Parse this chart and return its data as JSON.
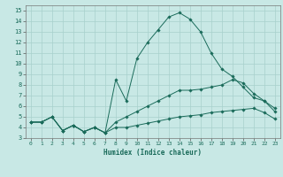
{
  "xlabel": "Humidex (Indice chaleur)",
  "bg_color": "#c8e8e5",
  "grid_color": "#a8d0cc",
  "line_color": "#1a6b5a",
  "xlim": [
    -0.5,
    23.5
  ],
  "ylim": [
    3,
    15.5
  ],
  "xticks": [
    0,
    1,
    2,
    3,
    4,
    5,
    6,
    7,
    8,
    9,
    10,
    11,
    12,
    13,
    14,
    15,
    16,
    17,
    18,
    19,
    20,
    21,
    22,
    23
  ],
  "yticks": [
    3,
    4,
    5,
    6,
    7,
    8,
    9,
    10,
    11,
    12,
    13,
    14,
    15
  ],
  "line1_x": [
    0,
    1,
    2,
    3,
    4,
    5,
    6,
    7,
    8,
    9,
    10,
    11,
    12,
    13,
    14,
    15,
    16,
    17,
    18,
    19,
    20,
    21,
    22,
    23
  ],
  "line1_y": [
    4.5,
    4.5,
    5.0,
    3.7,
    4.2,
    3.6,
    4.0,
    3.5,
    4.0,
    4.0,
    4.2,
    4.4,
    4.6,
    4.8,
    5.0,
    5.1,
    5.2,
    5.4,
    5.5,
    5.6,
    5.7,
    5.8,
    5.4,
    4.8
  ],
  "line2_x": [
    0,
    1,
    2,
    3,
    4,
    5,
    6,
    7,
    8,
    9,
    10,
    11,
    12,
    13,
    14,
    15,
    16,
    17,
    18,
    19,
    20,
    21,
    22,
    23
  ],
  "line2_y": [
    4.5,
    4.5,
    5.0,
    3.7,
    4.2,
    3.6,
    4.0,
    3.5,
    8.5,
    6.5,
    10.5,
    12.0,
    13.2,
    14.4,
    14.8,
    14.2,
    13.0,
    11.0,
    9.5,
    8.8,
    7.8,
    6.8,
    6.5,
    5.5
  ],
  "line3_x": [
    0,
    1,
    2,
    3,
    4,
    5,
    6,
    7,
    8,
    9,
    10,
    11,
    12,
    13,
    14,
    15,
    16,
    17,
    18,
    19,
    20,
    21,
    22,
    23
  ],
  "line3_y": [
    4.5,
    4.5,
    5.0,
    3.7,
    4.2,
    3.6,
    4.0,
    3.5,
    4.5,
    5.0,
    5.5,
    6.0,
    6.5,
    7.0,
    7.5,
    7.5,
    7.6,
    7.8,
    8.0,
    8.5,
    8.2,
    7.2,
    6.5,
    5.8
  ]
}
